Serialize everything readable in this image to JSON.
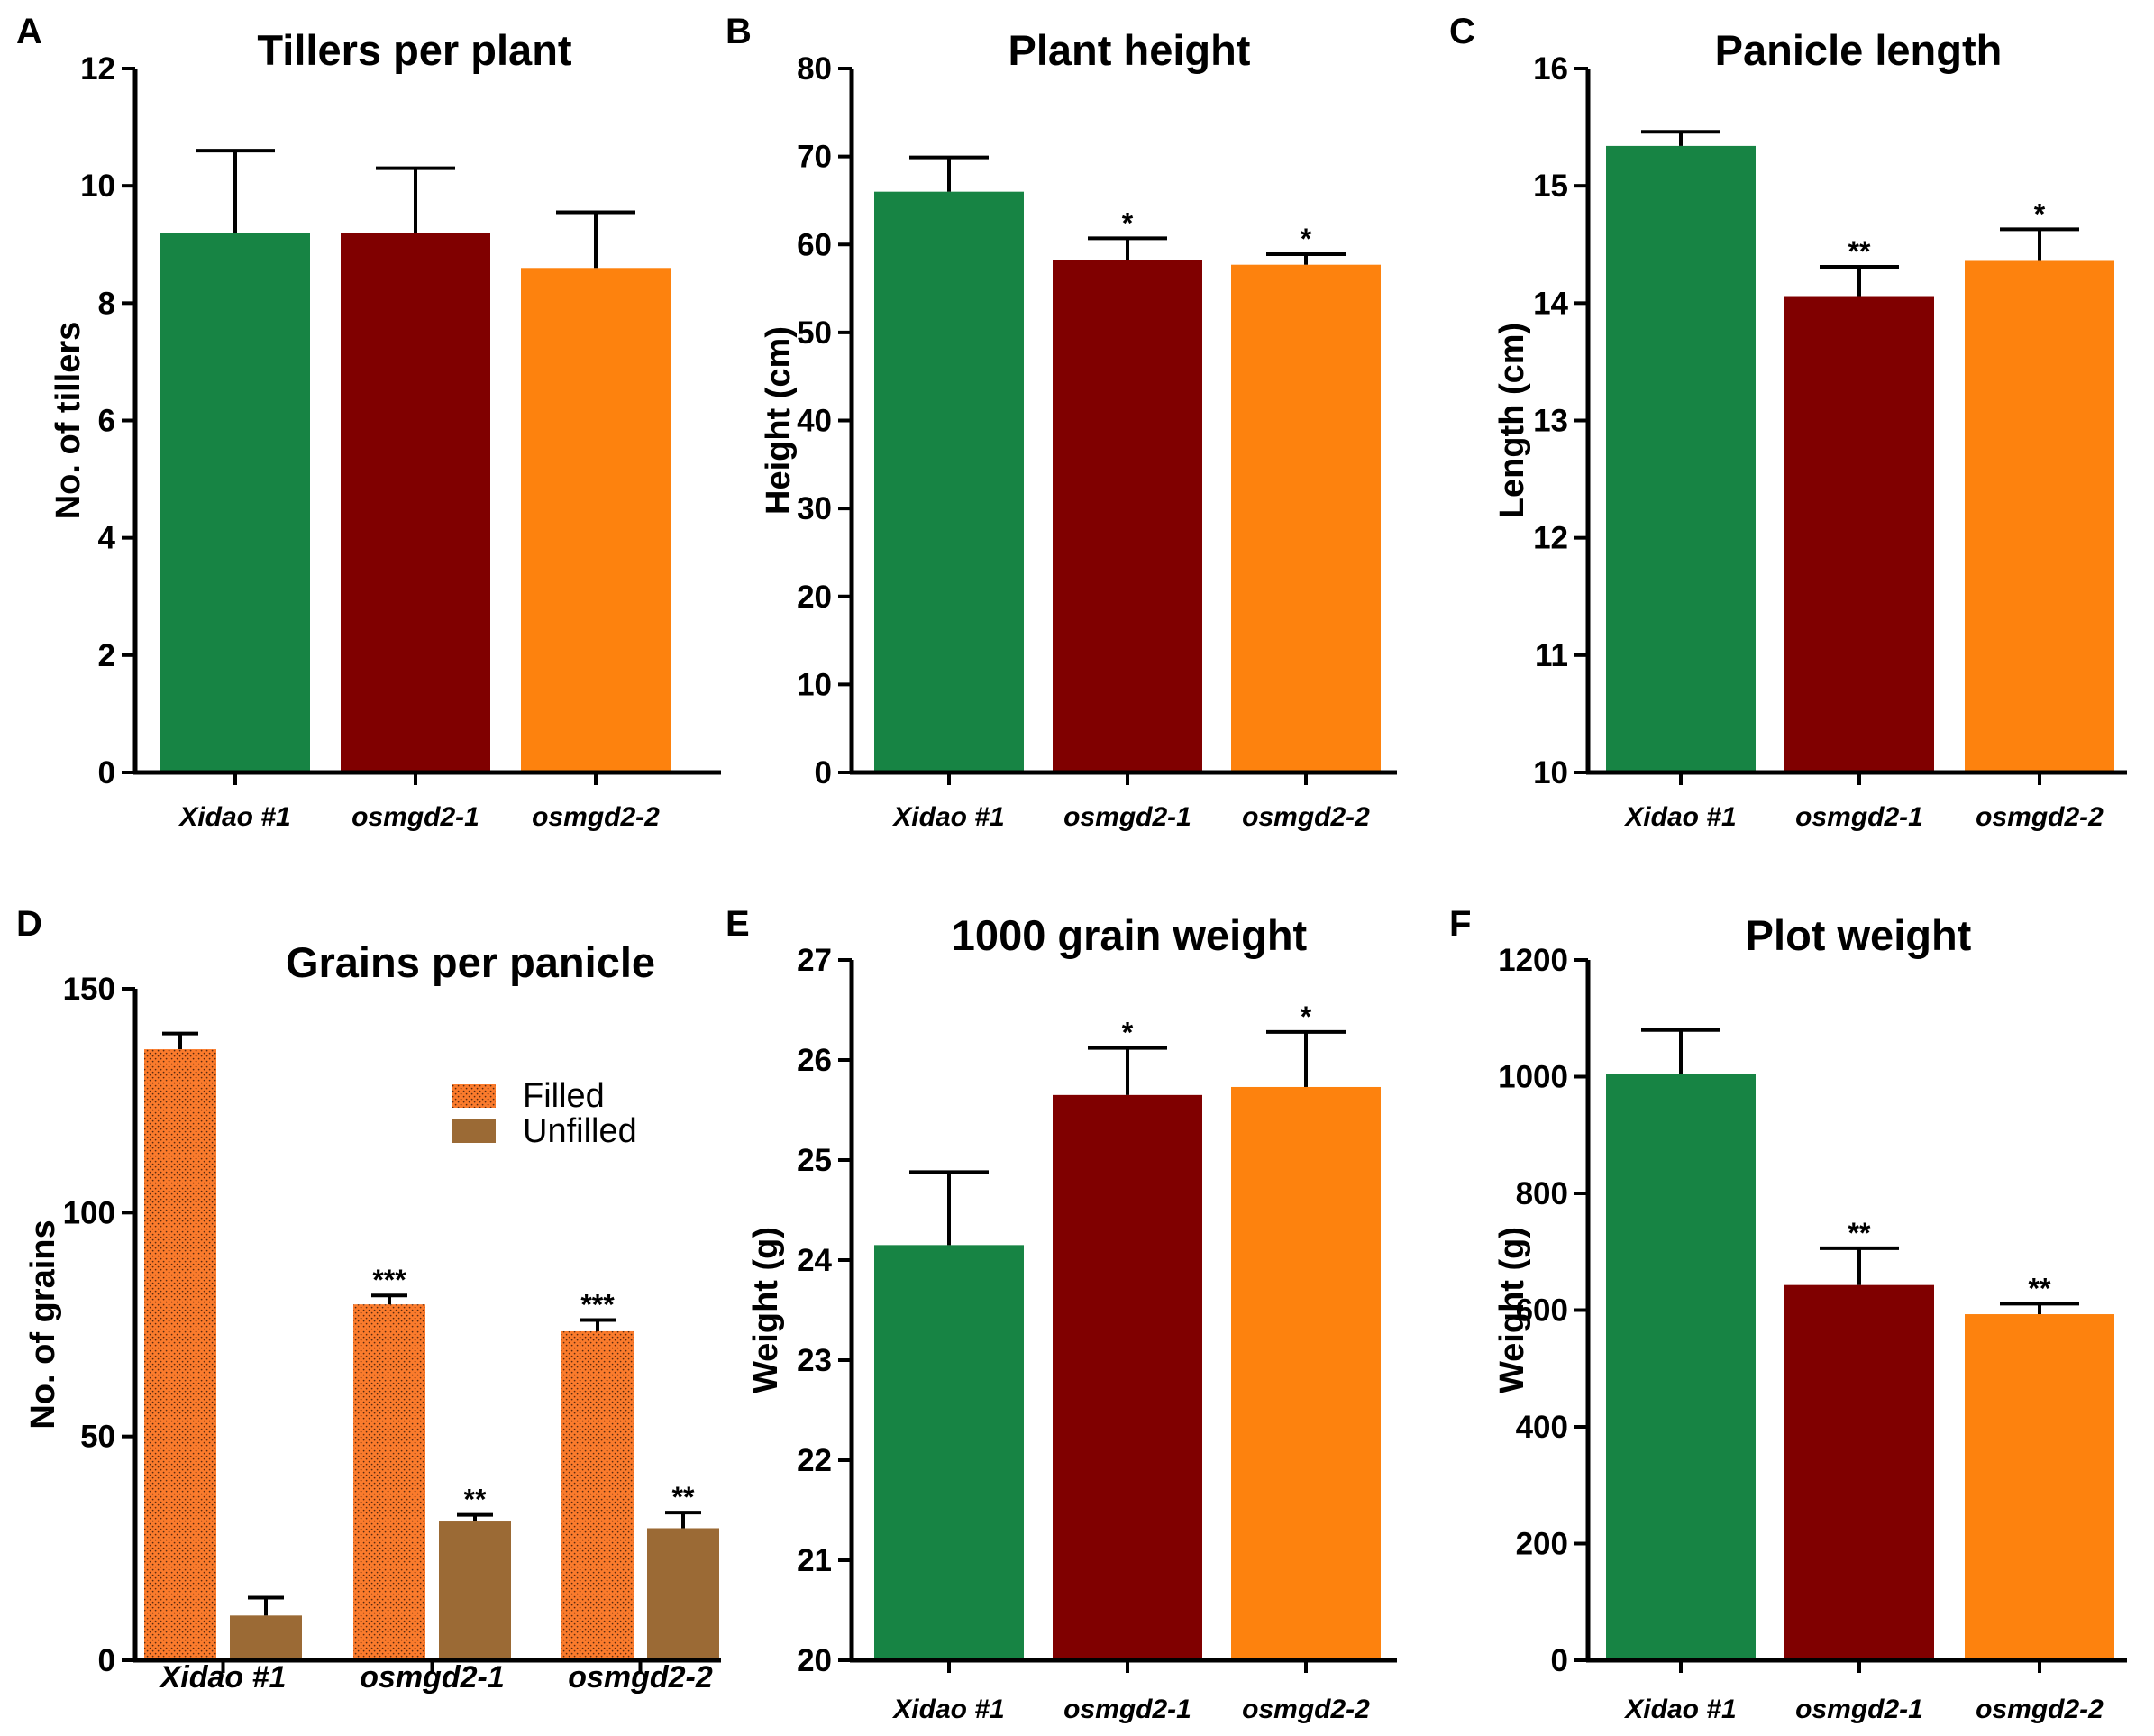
{
  "colors": {
    "green": "#178444",
    "darkred": "#800000",
    "orange": "#fd820e",
    "filled": "#fb7b2c",
    "unfilled": "#9b6a35",
    "axis": "#000000"
  },
  "chart_data": [
    {
      "letter": "A",
      "type": "bar",
      "title": "Tillers per plant",
      "ylabel": "No. of tillers",
      "xlabel": "",
      "ylim": [
        0,
        12
      ],
      "yticks": [
        "0",
        "2",
        "4",
        "6",
        "8",
        "10",
        "12"
      ],
      "categories": [
        "Xidao #1",
        "osmgd2-1",
        "osmgd2-2"
      ],
      "values": [
        9.2,
        9.2,
        8.6
      ],
      "errors": [
        1.4,
        1.1,
        0.95
      ],
      "significance": [
        "",
        "",
        ""
      ],
      "colors": [
        "#178444",
        "#800000",
        "#fd820e"
      ]
    },
    {
      "letter": "B",
      "type": "bar",
      "title": "Plant height",
      "ylabel": "Height (cm)",
      "xlabel": "",
      "ylim": [
        0,
        80
      ],
      "yticks": [
        "0",
        "10",
        "20",
        "30",
        "40",
        "50",
        "60",
        "70",
        "80"
      ],
      "categories": [
        "Xidao #1",
        "osmgd2-1",
        "osmgd2-2"
      ],
      "values": [
        66,
        58.2,
        57.7
      ],
      "errors": [
        3.9,
        2.5,
        1.2
      ],
      "significance": [
        "",
        "*",
        "*"
      ],
      "colors": [
        "#178444",
        "#800000",
        "#fd820e"
      ]
    },
    {
      "letter": "C",
      "type": "bar",
      "title": "Panicle length",
      "ylabel": "Length (cm)",
      "xlabel": "",
      "ylim": [
        10,
        16
      ],
      "yticks": [
        "10",
        "11",
        "12",
        "13",
        "14",
        "15",
        "16"
      ],
      "categories": [
        "Xidao #1",
        "osmgd2-1",
        "osmgd2-2"
      ],
      "values": [
        15.34,
        14.06,
        14.36
      ],
      "errors": [
        0.12,
        0.25,
        0.27
      ],
      "significance": [
        "",
        "**",
        "*"
      ],
      "colors": [
        "#178444",
        "#800000",
        "#fd820e"
      ]
    },
    {
      "letter": "D",
      "type": "bar",
      "title": "Grains per panicle",
      "ylabel": "No. of grains",
      "xlabel": "",
      "ylim": [
        0,
        150
      ],
      "yticks": [
        "0",
        "50",
        "100",
        "150"
      ],
      "categories": [
        "Xidao #1",
        "osmgd2-1",
        "osmgd2-2"
      ],
      "legend_position": "upper-right",
      "series": [
        {
          "name": "Filled",
          "values": [
            136.5,
            79.5,
            73.5
          ],
          "errors": [
            3.5,
            2.0,
            2.5
          ],
          "significance": [
            "",
            "***",
            "***"
          ],
          "color": "#fb7b2c",
          "pattern": "dotted"
        },
        {
          "name": "Unfilled",
          "values": [
            10,
            31,
            29.5
          ],
          "errors": [
            4.0,
            1.5,
            3.5
          ],
          "significance": [
            "",
            "**",
            "**"
          ],
          "color": "#9b6a35",
          "pattern": "solid"
        }
      ]
    },
    {
      "letter": "E",
      "type": "bar",
      "title": "1000 grain weight",
      "ylabel": "Weight (g)",
      "xlabel": "",
      "ylim": [
        20,
        27
      ],
      "yticks": [
        "20",
        "21",
        "22",
        "23",
        "24",
        "25",
        "26",
        "27"
      ],
      "categories": [
        "Xidao #1",
        "osmgd2-1",
        "osmgd2-2"
      ],
      "values": [
        24.15,
        25.65,
        25.73
      ],
      "errors": [
        0.73,
        0.47,
        0.55
      ],
      "significance": [
        "",
        "*",
        "*"
      ],
      "colors": [
        "#178444",
        "#800000",
        "#fd820e"
      ]
    },
    {
      "letter": "F",
      "type": "bar",
      "title": "Plot weight",
      "ylabel": "Weight (g)",
      "xlabel": "",
      "ylim": [
        0,
        1200
      ],
      "yticks": [
        "0",
        "200",
        "400",
        "600",
        "800",
        "1000",
        "1200"
      ],
      "categories": [
        "Xidao #1",
        "osmgd2-1",
        "osmgd2-2"
      ],
      "values": [
        1005,
        643,
        593
      ],
      "errors": [
        75,
        63,
        18
      ],
      "significance": [
        "",
        "**",
        "**"
      ],
      "colors": [
        "#178444",
        "#800000",
        "#fd820e"
      ]
    }
  ]
}
